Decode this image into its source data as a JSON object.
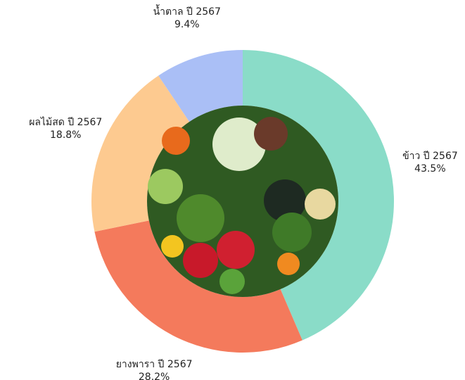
{
  "chart_data": {
    "type": "donut",
    "categories": [
      "ข้าว ปี 2567",
      "ยางพารา ปี 2567",
      "ผลไม้สด ปี 2567",
      "น้ำตาล ปี 2567"
    ],
    "values": [
      43.5,
      28.2,
      18.8,
      9.4
    ],
    "value_labels": [
      "43.5%",
      "28.2%",
      "18.8%",
      "9.4%"
    ],
    "colors": [
      "#8adcc8",
      "#f47a5c",
      "#fdca90",
      "#aabff6"
    ]
  }
}
